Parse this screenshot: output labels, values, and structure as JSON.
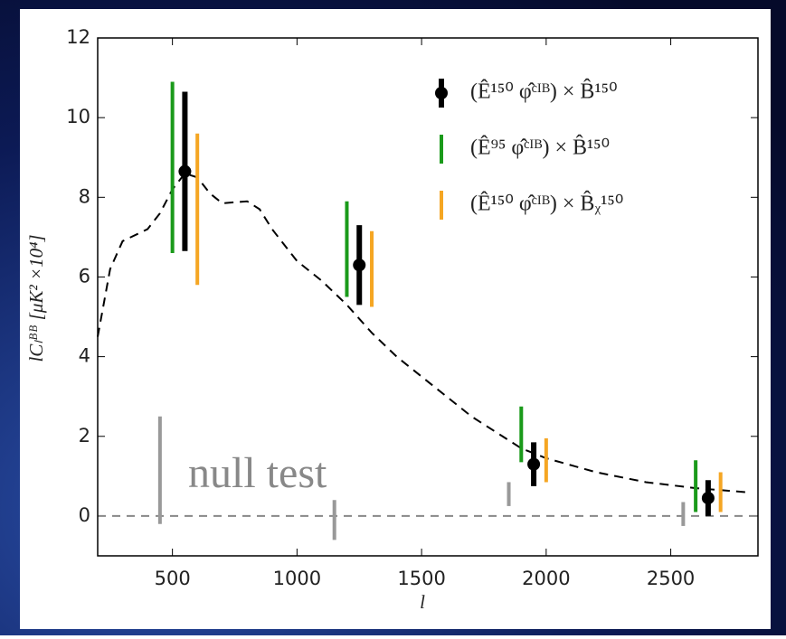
{
  "chart_data": {
    "type": "errorbar",
    "x_label": "l",
    "y_label": "lCₗᴮᴮ [μK² ×10⁴]",
    "xlim": [
      200,
      2850
    ],
    "ylim": [
      -1,
      12
    ],
    "xticks": [
      500,
      1000,
      1500,
      2000,
      2500
    ],
    "yticks": [
      0,
      2,
      4,
      6,
      8,
      10,
      12
    ],
    "reference_line": 0,
    "series": [
      {
        "name": "(Ê¹⁵⁰ φ̂ᶜᴵᴮ) × B̂¹⁵⁰",
        "color": "#000000",
        "marker": true,
        "x": [
          550,
          1250,
          1950,
          2650
        ],
        "values": [
          8.65,
          6.3,
          1.3,
          0.45
        ],
        "errors": [
          2.0,
          1.0,
          0.55,
          0.45
        ]
      },
      {
        "name": "(Ê⁹⁵ φ̂ᶜᴵᴮ) × B̂¹⁵⁰",
        "color": "#1a9a1a",
        "marker": false,
        "x": [
          500,
          1200,
          1900,
          2600
        ],
        "values": [
          8.75,
          6.7,
          2.05,
          0.75
        ],
        "errors": [
          2.15,
          1.2,
          0.7,
          0.65
        ]
      },
      {
        "name": "(Ê¹⁵⁰ φ̂ᶜᴵᴮ) × B̂ᵪ¹⁵⁰",
        "color": "#f5a623",
        "marker": false,
        "x": [
          600,
          1300,
          2000,
          2700
        ],
        "values": [
          7.7,
          6.2,
          1.4,
          0.6
        ],
        "errors": [
          1.9,
          0.95,
          0.55,
          0.5
        ]
      }
    ],
    "null_test": {
      "label": "null test",
      "color": "#999999",
      "x": [
        450,
        1150,
        1850,
        2550
      ],
      "values": [
        1.15,
        -0.1,
        0.55,
        0.05
      ],
      "errors": [
        1.35,
        0.5,
        0.3,
        0.3
      ]
    },
    "theory": {
      "color": "#000000",
      "x": [
        200,
        250,
        300,
        400,
        450,
        500,
        550,
        600,
        650,
        700,
        800,
        850,
        900,
        1000,
        1100,
        1200,
        1300,
        1400,
        1500,
        1600,
        1700,
        1800,
        1900,
        2000,
        2200,
        2400,
        2600,
        2800
      ],
      "values": [
        4.5,
        6.2,
        6.9,
        7.2,
        7.6,
        8.2,
        8.6,
        8.5,
        8.1,
        7.85,
        7.9,
        7.7,
        7.2,
        6.4,
        5.9,
        5.3,
        4.6,
        4.0,
        3.5,
        3.0,
        2.5,
        2.1,
        1.7,
        1.45,
        1.1,
        0.85,
        0.7,
        0.6
      ]
    }
  }
}
